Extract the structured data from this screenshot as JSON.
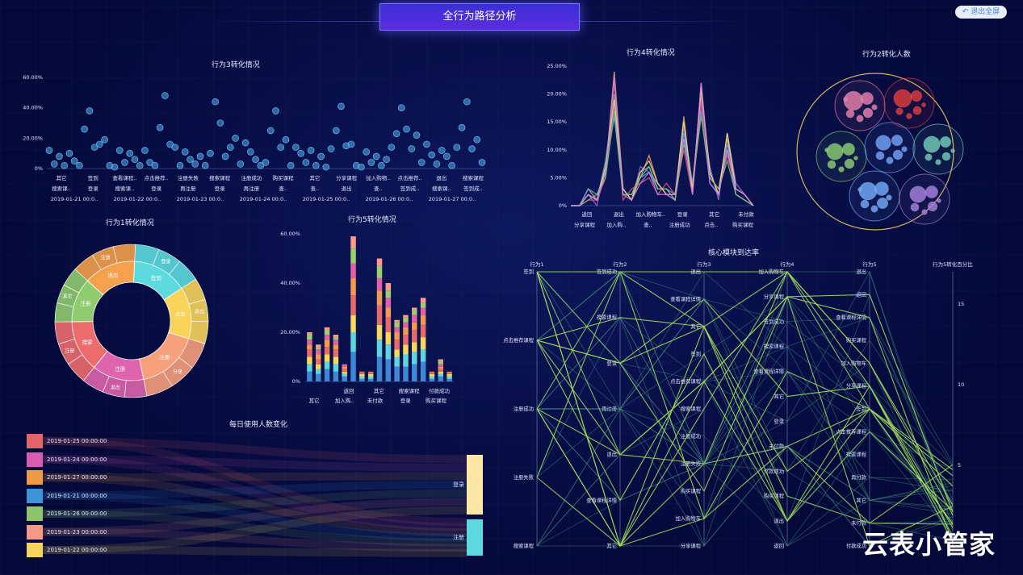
{
  "header": {
    "title": "全行为路径分析",
    "exit_label": "退出全屏"
  },
  "watermark": "云表小管家",
  "colors": {
    "bg": "#04093a",
    "title_bg": "#4a30dc",
    "scatter": "#3d8fcf",
    "line_palette": [
      "#e7ab63",
      "#66c2a5",
      "#9c6cd8",
      "#e15b78",
      "#5fb2e6",
      "#f6e37a",
      "#7cc66f",
      "#d97cf0"
    ],
    "bar_palette": [
      "#3f86d6",
      "#5ed6e0",
      "#f5d85c",
      "#e96a6a",
      "#f19a50",
      "#e061a8",
      "#9bcf6b",
      "#ff9a8a"
    ],
    "legend_palette": [
      "#e8626b",
      "#d85db0",
      "#f19a46",
      "#3d93d6",
      "#8ec56a",
      "#f49a84",
      "#f6d35a"
    ]
  },
  "chart_data": [
    {
      "id": "behavior3",
      "type": "scatter",
      "title": "行为3转化情况",
      "yticks": [
        "0%",
        "20.00%",
        "40.00%",
        "60.00%"
      ],
      "ylim": [
        0,
        60
      ],
      "x_labels_row1": [
        "其它",
        "签到",
        "查看课程..",
        "点击推荐..",
        "注册失败",
        "搜索课程",
        "注册成功",
        "购买课程",
        "其它",
        "分享课程",
        "加入购物..",
        "点击推荐..",
        "退出",
        "搜索课程"
      ],
      "x_labels_row2": [
        "搜索课..",
        "登录",
        "搜索课..",
        "登录",
        "再注册",
        "登录",
        "再注册",
        "查..",
        "查..",
        "退出",
        "查..",
        "签到成..",
        "搜索课..",
        "签到成.."
      ],
      "x_labels_row3": [
        "2019-01-21 00:0..",
        "2019-01-22 00:0..",
        "2019-01-23 00:0..",
        "2019-01-24 00:0..",
        "2019-01-25 00:0..",
        "2019-01-26 00:0..",
        "2019-01-27 00:0.."
      ],
      "values": [
        12,
        3,
        8,
        2,
        10,
        5,
        2,
        26,
        38,
        14,
        16,
        19,
        2,
        1,
        12,
        4,
        10,
        6,
        2,
        12,
        4,
        2,
        27,
        48,
        16,
        14,
        2,
        11,
        6,
        3,
        8,
        2,
        10,
        44,
        30,
        8,
        14,
        20,
        3,
        17,
        11,
        6,
        2,
        4,
        25,
        38,
        14,
        19,
        2,
        14,
        10,
        4,
        12,
        2,
        8,
        1,
        13,
        25,
        41,
        15,
        16,
        2,
        1,
        11,
        4,
        8,
        2,
        6,
        14,
        23,
        40,
        26,
        13,
        22,
        4,
        16,
        9,
        3,
        12,
        8,
        2,
        14,
        27,
        44,
        13,
        19,
        4
      ]
    },
    {
      "id": "behavior4",
      "type": "line",
      "title": "行为4转化情况",
      "yticks": [
        "0%",
        "5.00%",
        "10.00%",
        "15.00%",
        "20.00%",
        "25.00%"
      ],
      "ylim": [
        0,
        25
      ],
      "x_labels_row1": [
        "返回",
        "退出",
        "加入购物车..",
        "登录",
        "其它",
        "未付款"
      ],
      "x_labels_row2": [
        "分享课程",
        "加入购..",
        "查..",
        "注册成功",
        "点击..",
        "购买课程"
      ],
      "series": [
        {
          "values": [
            0,
            0,
            3,
            1,
            6,
            24,
            3,
            1,
            5,
            9,
            4,
            2,
            1,
            16,
            2,
            22,
            5,
            3,
            12,
            3,
            2,
            0
          ]
        },
        {
          "values": [
            0,
            0,
            2,
            1,
            8,
            20,
            2,
            2,
            6,
            7,
            3,
            3,
            2,
            12,
            3,
            20,
            6,
            2,
            10,
            2,
            1,
            0
          ]
        },
        {
          "values": [
            0,
            0,
            2,
            0,
            7,
            18,
            3,
            1,
            7,
            6,
            4,
            2,
            1,
            14,
            4,
            18,
            7,
            1,
            13,
            4,
            2,
            0
          ]
        },
        {
          "values": [
            0,
            0,
            1,
            1,
            5,
            22,
            1,
            3,
            4,
            5,
            2,
            4,
            2,
            10,
            2,
            19,
            5,
            3,
            9,
            3,
            2,
            0
          ]
        },
        {
          "values": [
            0,
            0,
            3,
            2,
            6,
            16,
            2,
            2,
            5,
            6,
            3,
            3,
            1,
            13,
            3,
            17,
            4,
            2,
            11,
            2,
            1,
            0
          ]
        },
        {
          "values": [
            0,
            0,
            2,
            1,
            7,
            19,
            3,
            1,
            6,
            8,
            4,
            2,
            2,
            15,
            3,
            21,
            6,
            2,
            13,
            3,
            2,
            0
          ]
        },
        {
          "values": [
            0,
            0,
            1,
            2,
            5,
            17,
            2,
            2,
            5,
            7,
            3,
            3,
            1,
            11,
            4,
            16,
            5,
            3,
            8,
            2,
            1,
            0
          ]
        },
        {
          "values": [
            0,
            0,
            2,
            1,
            6,
            23,
            2,
            1,
            4,
            6,
            2,
            2,
            2,
            12,
            2,
            22,
            4,
            2,
            10,
            3,
            2,
            0
          ]
        }
      ]
    },
    {
      "id": "behavior2",
      "type": "packed-bubble",
      "title": "行为2转化人数",
      "groups": [
        {
          "color": "#e07ba8",
          "bubbles": [
            14,
            9,
            7,
            6,
            5,
            4,
            3
          ]
        },
        {
          "color": "#d9383d",
          "bubbles": [
            13,
            8,
            6,
            5,
            4,
            3
          ]
        },
        {
          "color": "#84c86e",
          "bubbles": [
            12,
            9,
            7,
            6,
            4,
            3,
            3
          ]
        },
        {
          "color": "#6e9ef2",
          "bubbles": [
            11,
            8,
            7,
            6,
            5,
            4
          ]
        },
        {
          "color": "#6fc7b6",
          "bubbles": [
            12,
            8,
            6,
            5,
            4,
            3
          ]
        },
        {
          "color": "#6ea6f4",
          "bubbles": [
            13,
            10,
            8,
            6,
            5,
            4,
            3
          ]
        },
        {
          "color": "#a17ed8",
          "bubbles": [
            12,
            9,
            7,
            6,
            4,
            3
          ]
        }
      ]
    },
    {
      "id": "behavior1",
      "type": "sunburst",
      "title": "行为1转化情况",
      "inner": [
        {
          "label": "签到",
          "value": 15,
          "color": "#5ddadd"
        },
        {
          "label": "点击推荐课程",
          "value": 14,
          "color": "#f8d45b"
        },
        {
          "label": "注册成功",
          "value": 17,
          "color": "#f6a07c"
        },
        {
          "label": "注册失败",
          "value": 14,
          "color": "#dd64ad"
        },
        {
          "label": "搜索课程",
          "value": 14,
          "color": "#ec6c6e"
        },
        {
          "label": "注册",
          "value": 12,
          "color": "#8fcb6f"
        },
        {
          "label": "退出",
          "value": 14,
          "color": "#f4a04c"
        }
      ],
      "outer_labels": [
        "签到",
        "登录",
        "注册",
        "搜索",
        "退出",
        "搜索",
        "注册",
        "分享",
        "课程",
        "付款",
        "退出",
        "点击",
        "搜索",
        "注册",
        "签到",
        "退出",
        "其它",
        "分享",
        "搜索",
        "注册"
      ]
    },
    {
      "id": "behavior5",
      "type": "bar",
      "title": "行为5转化情况",
      "yticks": [
        "0%",
        "20.00%",
        "40.00%",
        "60.00%"
      ],
      "ylim": [
        0,
        60
      ],
      "x_labels_row1": [
        "返回",
        "其它",
        "搜索课程",
        "付款成功"
      ],
      "x_labels_row2": [
        "其它",
        "加入购..",
        "未付款",
        "登录",
        "购买课程"
      ],
      "stacks": [
        [
          4,
          3,
          3,
          3,
          2,
          2,
          2,
          1
        ],
        [
          3,
          2,
          2,
          2,
          2,
          2,
          1,
          1
        ],
        [
          5,
          3,
          3,
          3,
          3,
          2,
          2,
          1
        ],
        [
          4,
          3,
          3,
          3,
          2,
          2,
          1,
          1
        ],
        [
          2,
          1,
          1,
          1,
          1,
          1,
          0,
          0
        ],
        [
          12,
          8,
          7,
          8,
          7,
          6,
          6,
          5
        ],
        [
          1,
          1,
          1,
          1,
          0,
          0,
          0,
          0
        ],
        [
          1,
          1,
          1,
          1,
          0,
          0,
          0,
          0
        ],
        [
          10,
          7,
          6,
          8,
          6,
          5,
          5,
          3
        ],
        [
          9,
          6,
          5,
          6,
          4,
          4,
          3,
          3
        ],
        [
          6,
          4,
          3,
          4,
          3,
          2,
          2,
          1
        ],
        [
          6,
          5,
          4,
          4,
          3,
          2,
          2,
          1
        ],
        [
          7,
          5,
          4,
          5,
          3,
          3,
          2,
          1
        ],
        [
          8,
          5,
          5,
          5,
          4,
          3,
          2,
          2
        ],
        [
          1,
          1,
          1,
          1,
          0,
          0,
          0,
          0
        ],
        [
          2,
          1,
          1,
          1,
          1,
          1,
          1,
          1
        ],
        [
          1,
          1,
          1,
          1,
          0,
          0,
          0,
          0
        ]
      ]
    },
    {
      "id": "daily",
      "type": "sankey",
      "title": "每日使用人数变化",
      "sources": [
        "2019-01-25 00:00:00",
        "2019-01-24 00:00:00",
        "2019-01-27 00:00:00",
        "2019-01-21 00:00:00",
        "2019-01-26 00:00:00",
        "2019-01-23 00:00:00",
        "2019-01-22 00:00:00"
      ],
      "targets": [
        {
          "label": "登录",
          "color": "#fde7a7"
        },
        {
          "label": "注册",
          "color": "#5dd8de"
        }
      ]
    },
    {
      "id": "core",
      "type": "parallel",
      "title": "核心模块到达率",
      "axes": [
        {
          "name": "行为1",
          "labels": [
            "签到",
            "点击推荐课程",
            "注册成功",
            "注册失败",
            "搜索课程"
          ]
        },
        {
          "name": "行为2",
          "labels": [
            "签到成功",
            "搜索课程",
            "登录",
            "再注册",
            "退出",
            "查看课程详情",
            "其它"
          ]
        },
        {
          "name": "行为3",
          "labels": [
            "退出",
            "查看课程详情",
            "其它",
            "签到",
            "点击推荐课程",
            "搜索课程",
            "注册成功",
            "注册失败",
            "购买课程",
            "加入购物车",
            "分享课程"
          ]
        },
        {
          "name": "行为4",
          "labels": [
            "加入购物车",
            "分享课程",
            "签到成功",
            "搜索课程",
            "查看课程详情",
            "其它",
            "登录",
            "未付款",
            "付款成功",
            "购买课程",
            "退出",
            "返回"
          ]
        },
        {
          "name": "行为5",
          "labels": [
            "退出",
            "返回",
            "查看课程详情",
            "购买课程",
            "加入购物车",
            "分享课程",
            "签到",
            "点击推荐课程",
            "搜索课程",
            "再付款",
            "其它",
            "未付款",
            "付款成功"
          ]
        },
        {
          "name": "行为5转化百分比",
          "ticks": [
            "15",
            "10",
            "5"
          ],
          "ylim": [
            0,
            17
          ]
        }
      ]
    }
  ]
}
